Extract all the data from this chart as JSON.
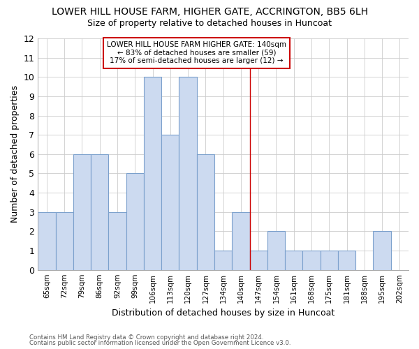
{
  "title": "LOWER HILL HOUSE FARM, HIGHER GATE, ACCRINGTON, BB5 6LH",
  "subtitle": "Size of property relative to detached houses in Huncoat",
  "xlabel": "Distribution of detached houses by size in Huncoat",
  "ylabel": "Number of detached properties",
  "categories": [
    "65sqm",
    "72sqm",
    "79sqm",
    "86sqm",
    "92sqm",
    "99sqm",
    "106sqm",
    "113sqm",
    "120sqm",
    "127sqm",
    "134sqm",
    "140sqm",
    "147sqm",
    "154sqm",
    "161sqm",
    "168sqm",
    "175sqm",
    "181sqm",
    "188sqm",
    "195sqm",
    "202sqm"
  ],
  "values": [
    3,
    3,
    6,
    6,
    3,
    5,
    10,
    7,
    10,
    6,
    1,
    3,
    1,
    2,
    1,
    1,
    1,
    1,
    0,
    2,
    0
  ],
  "bar_color": "#ccdaf0",
  "bar_edge_color": "#7ba0cc",
  "highlight_index": 11,
  "highlight_line_color": "#cc0000",
  "ylim": [
    0,
    12
  ],
  "yticks": [
    0,
    1,
    2,
    3,
    4,
    5,
    6,
    7,
    8,
    9,
    10,
    11,
    12
  ],
  "annotation_text": "LOWER HILL HOUSE FARM HIGHER GATE: 140sqm\n← 83% of detached houses are smaller (59)\n17% of semi-detached houses are larger (12) →",
  "annotation_box_color": "#ffffff",
  "annotation_box_edge": "#cc0000",
  "footer1": "Contains HM Land Registry data © Crown copyright and database right 2024.",
  "footer2": "Contains public sector information licensed under the Open Government Licence v3.0.",
  "grid_color": "#cccccc",
  "background_color": "#ffffff",
  "plot_bg_color": "#ffffff"
}
